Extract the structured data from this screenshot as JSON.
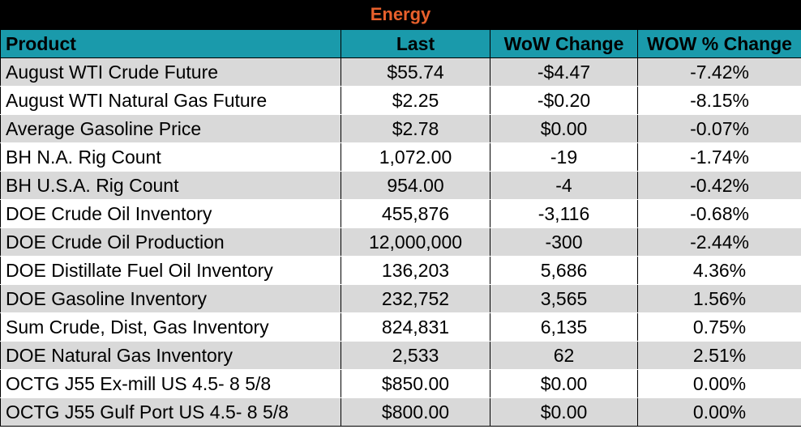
{
  "title": "Energy",
  "columns": [
    "Product",
    "Last",
    "WoW Change",
    "WOW % Change"
  ],
  "rows": [
    [
      "August WTI Crude Future",
      "$55.74",
      "-$4.47",
      "-7.42%"
    ],
    [
      "August WTI Natural Gas Future",
      "$2.25",
      "-$0.20",
      "-8.15%"
    ],
    [
      "Average Gasoline Price",
      "$2.78",
      "$0.00",
      "-0.07%"
    ],
    [
      "BH N.A. Rig Count",
      "1,072.00",
      "-19",
      "-1.74%"
    ],
    [
      "BH U.S.A. Rig Count",
      "954.00",
      "-4",
      "-0.42%"
    ],
    [
      "DOE Crude Oil Inventory",
      "455,876",
      "-3,116",
      "-0.68%"
    ],
    [
      "DOE Crude Oil Production",
      "12,000,000",
      "-300",
      "-2.44%"
    ],
    [
      "DOE Distillate Fuel Oil Inventory",
      "136,203",
      "5,686",
      "4.36%"
    ],
    [
      "DOE Gasoline Inventory",
      "232,752",
      "3,565",
      "1.56%"
    ],
    [
      "Sum Crude, Dist, Gas Inventory",
      "824,831",
      "6,135",
      "0.75%"
    ],
    [
      "DOE Natural Gas Inventory",
      "2,533",
      "62",
      "2.51%"
    ],
    [
      "OCTG J55 Ex-mill US 4.5- 8 5/8",
      "$850.00",
      "$0.00",
      "0.00%"
    ],
    [
      "OCTG J55 Gulf Port US 4.5- 8 5/8",
      "$800.00",
      "$0.00",
      "0.00%"
    ]
  ],
  "colors": {
    "title_bg": "#000000",
    "title_text": "#e8602c",
    "header_bg": "#1a9aab",
    "row_alt": "#d9d9d9"
  }
}
